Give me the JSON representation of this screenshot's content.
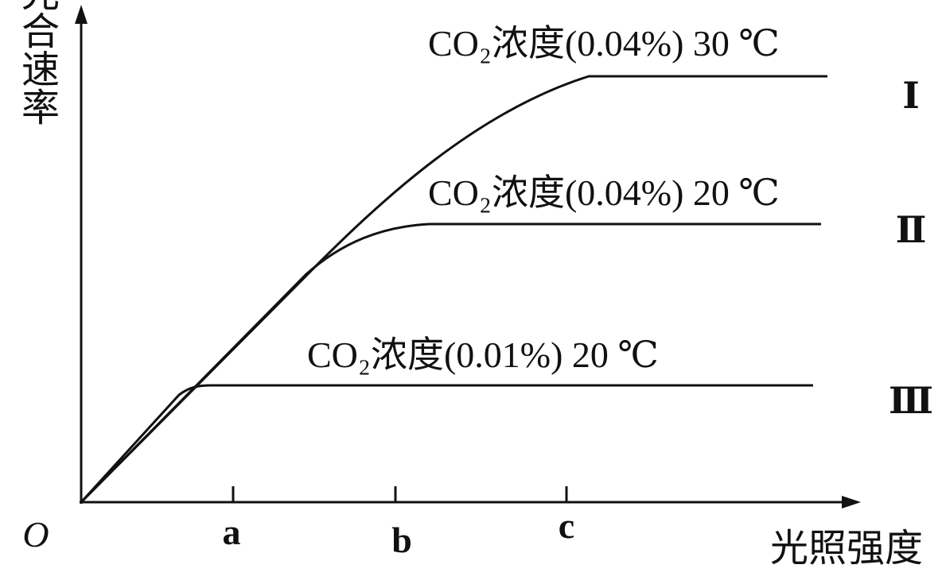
{
  "axes": {
    "origin": "O",
    "y_label": "光合速率",
    "x_label": "光照强度",
    "x_ticks": [
      "a",
      "b",
      "c"
    ]
  },
  "curves": [
    {
      "label": "CO₂浓度(0.04%) 30 ℃",
      "numeral": "Ⅰ"
    },
    {
      "label": "CO₂浓度(0.04%) 20 ℃",
      "numeral": "Ⅱ"
    },
    {
      "label": "CO₂浓度(0.01%) 20 ℃",
      "numeral": "Ⅲ"
    }
  ]
}
